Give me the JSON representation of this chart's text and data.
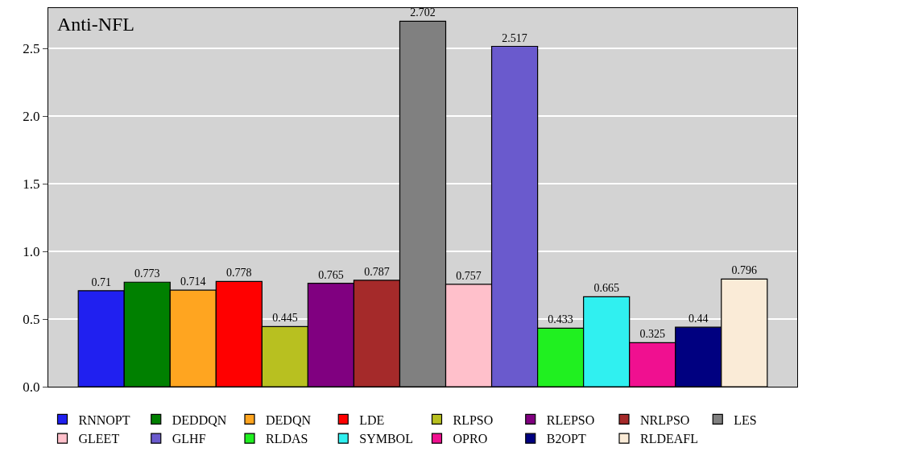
{
  "chart_data": {
    "type": "bar",
    "title": "Anti-NFL",
    "categories": [
      null
    ],
    "series": [
      {
        "name": "RNNOPT",
        "color": "#2020f0",
        "values": [
          0.71
        ]
      },
      {
        "name": "DEDDQN",
        "color": "#008000",
        "values": [
          0.773
        ]
      },
      {
        "name": "DEDQN",
        "color": "#ffa520",
        "values": [
          0.714
        ]
      },
      {
        "name": "LDE",
        "color": "#ff0000",
        "values": [
          0.778
        ]
      },
      {
        "name": "RLPSO",
        "color": "#b8c020",
        "values": [
          0.445
        ]
      },
      {
        "name": "RLEPSO",
        "color": "#800080",
        "values": [
          0.765
        ]
      },
      {
        "name": "NRLPSO",
        "color": "#a52a2a",
        "values": [
          0.787
        ]
      },
      {
        "name": "LES",
        "color": "#808080",
        "values": [
          2.702
        ]
      },
      {
        "name": "GLEET",
        "color": "#ffc0cb",
        "values": [
          0.757
        ]
      },
      {
        "name": "GLHF",
        "color": "#6a5acd",
        "values": [
          2.517
        ]
      },
      {
        "name": "RLDAS",
        "color": "#20f020",
        "values": [
          0.433
        ]
      },
      {
        "name": "SYMBOL",
        "color": "#30f0f0",
        "values": [
          0.665
        ]
      },
      {
        "name": "OPRO",
        "color": "#f01090",
        "values": [
          0.325
        ]
      },
      {
        "name": "B2OPT",
        "color": "#000080",
        "values": [
          0.44
        ]
      },
      {
        "name": "RLDEAFL",
        "color": "#faebd7",
        "values": [
          0.796
        ]
      }
    ],
    "ylim": [
      0,
      2.8
    ],
    "yticks": [
      {
        "value": 0,
        "label": "0.0"
      },
      0.5,
      {
        "value": 1,
        "label": "1.0"
      },
      1.5,
      {
        "value": 2,
        "label": "2.0"
      },
      2.5
    ],
    "grid": "y",
    "legend": "bottom",
    "data_labels": true
  }
}
